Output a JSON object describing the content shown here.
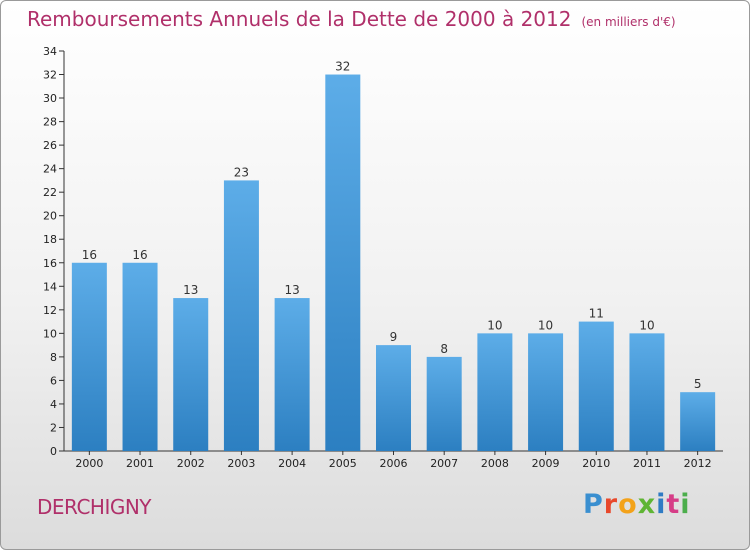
{
  "chart_data": {
    "type": "bar",
    "title": "Remboursements Annuels de la Dette de 2000 à 2012",
    "subtitle": "(en milliers d'€)",
    "categories": [
      "2000",
      "2001",
      "2002",
      "2003",
      "2004",
      "2005",
      "2006",
      "2007",
      "2008",
      "2009",
      "2010",
      "2011",
      "2012"
    ],
    "values": [
      16,
      16,
      13,
      23,
      13,
      32,
      9,
      8,
      10,
      10,
      11,
      10,
      5
    ],
    "ylim": [
      0,
      34
    ],
    "yticks": [
      0,
      2,
      4,
      6,
      8,
      10,
      12,
      14,
      16,
      18,
      20,
      22,
      24,
      26,
      28,
      30,
      32,
      34
    ],
    "xlabel": "",
    "ylabel": "",
    "grid": false,
    "bar_color_top": "#5dade8",
    "bar_color_bottom": "#2c7fc1"
  },
  "footer": {
    "city": "DERCHIGNY",
    "logo_text": "Proxiti"
  },
  "colors": {
    "title": "#b0306a",
    "axis": "#333333"
  }
}
